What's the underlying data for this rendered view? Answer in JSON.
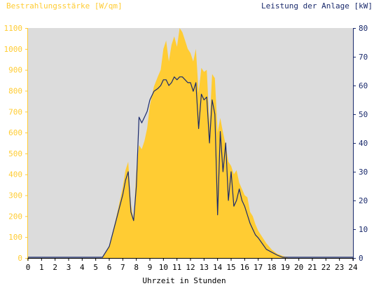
{
  "chart_data": {
    "type": "area",
    "left_axis_label": "Bestrahlungsstärke [W/qm]",
    "right_axis_label": "Leistung der Anlage [kW]",
    "xlabel": "Uhrzeit in Stunden",
    "xlim": [
      0,
      24
    ],
    "ylim_left": [
      0,
      1100
    ],
    "ylim_right": [
      0,
      80
    ],
    "x_ticks": [
      "0",
      "1",
      "2",
      "3",
      "4",
      "5",
      "6",
      "7",
      "8",
      "9",
      "10",
      "11",
      "12",
      "13",
      "14",
      "15",
      "16",
      "17",
      "18",
      "19",
      "20",
      "21",
      "22",
      "23",
      "24"
    ],
    "y_left_ticks": [
      "0",
      "100",
      "200",
      "300",
      "400",
      "500",
      "600",
      "700",
      "800",
      "900",
      "1000",
      "1100"
    ],
    "y_right_ticks": [
      "0",
      "10",
      "20",
      "30",
      "40",
      "50",
      "60",
      "70",
      "80"
    ],
    "grid": false,
    "colors": {
      "plot_background": "#dcdcdc",
      "irradiance_fill": "#ffcc33",
      "power_line": "#1a2a6c",
      "left_axis_text": "#ffcc33",
      "right_axis_text": "#1a2a6c",
      "x_axis_text": "#000000"
    },
    "series": [
      {
        "name": "Bestrahlungsstärke [W/qm]",
        "axis": "left",
        "style": "area",
        "x": [
          5.5,
          6.0,
          6.5,
          7.0,
          7.2,
          7.4,
          7.6,
          7.8,
          8.0,
          8.2,
          8.4,
          8.6,
          8.8,
          9.0,
          9.3,
          9.6,
          9.8,
          10.0,
          10.2,
          10.4,
          10.6,
          10.8,
          11.0,
          11.2,
          11.4,
          11.6,
          11.8,
          12.0,
          12.2,
          12.4,
          12.6,
          12.8,
          13.0,
          13.2,
          13.4,
          13.6,
          13.8,
          14.0,
          14.2,
          14.4,
          14.6,
          14.8,
          15.0,
          15.2,
          15.4,
          15.6,
          15.8,
          16.0,
          16.2,
          16.4,
          16.6,
          16.8,
          17.0,
          17.3,
          17.6,
          18.0,
          18.4,
          18.8,
          19.2,
          19.5
        ],
        "values": [
          0,
          60,
          190,
          340,
          420,
          460,
          260,
          180,
          420,
          540,
          520,
          560,
          620,
          730,
          820,
          870,
          900,
          1000,
          1040,
          940,
          1020,
          1060,
          1010,
          1100,
          1080,
          1040,
          1000,
          980,
          940,
          1000,
          790,
          910,
          890,
          900,
          640,
          880,
          860,
          600,
          670,
          600,
          540,
          460,
          440,
          400,
          420,
          360,
          330,
          300,
          290,
          220,
          200,
          160,
          130,
          100,
          70,
          40,
          20,
          10,
          0,
          0
        ]
      },
      {
        "name": "Leistung der Anlage [kW]",
        "axis": "right",
        "style": "line",
        "x": [
          5.5,
          6.0,
          6.5,
          7.0,
          7.2,
          7.4,
          7.6,
          7.8,
          8.0,
          8.2,
          8.4,
          8.6,
          8.8,
          9.0,
          9.3,
          9.6,
          9.8,
          10.0,
          10.2,
          10.4,
          10.6,
          10.8,
          11.0,
          11.2,
          11.4,
          11.6,
          11.8,
          12.0,
          12.2,
          12.4,
          12.6,
          12.8,
          13.0,
          13.2,
          13.4,
          13.6,
          13.8,
          14.0,
          14.2,
          14.4,
          14.6,
          14.8,
          15.0,
          15.2,
          15.4,
          15.6,
          15.8,
          16.0,
          16.2,
          16.4,
          16.6,
          16.8,
          17.0,
          17.3,
          17.6,
          18.0,
          18.4,
          18.8,
          19.2,
          19.5
        ],
        "values": [
          0,
          4,
          13,
          22,
          27,
          30,
          16,
          13,
          25,
          49,
          47,
          49,
          51,
          55,
          58,
          59,
          60,
          62,
          62,
          60,
          61,
          63,
          62,
          63,
          63,
          62,
          61,
          61,
          58,
          61,
          45,
          57,
          55,
          56,
          40,
          55,
          50,
          15,
          44,
          30,
          40,
          20,
          30,
          18,
          20,
          24,
          20,
          18,
          15,
          12,
          10,
          8,
          7,
          5,
          3,
          2,
          1,
          0,
          0,
          0
        ]
      }
    ]
  }
}
